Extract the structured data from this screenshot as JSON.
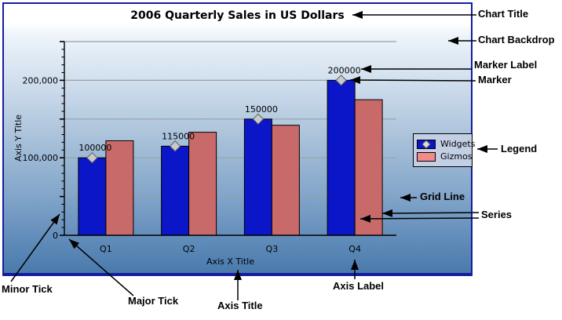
{
  "chart": {
    "title": "2006 Quarterly Sales in US Dollars",
    "axis_x_title": "Axis X Title",
    "axis_y_title": "Axis Y Title"
  },
  "chart_data": {
    "type": "bar",
    "title": "2006 Quarterly Sales in US Dollars",
    "xlabel": "Axis X Title",
    "ylabel": "Axis Y Title",
    "categories": [
      "Q1",
      "Q2",
      "Q3",
      "Q4"
    ],
    "series": [
      {
        "name": "Widgets",
        "color": "#0b16c8",
        "values": [
          100000,
          115000,
          150000,
          200000
        ],
        "marker": "diamond",
        "marker_labels": [
          "100000",
          "115000",
          "150000",
          "200000"
        ]
      },
      {
        "name": "Gizmos",
        "color": "#c96a6a",
        "values": [
          122000,
          133000,
          142000,
          175000
        ]
      }
    ],
    "ylim": [
      0,
      250000
    ],
    "y_major_step": 50000,
    "y_minor_step": 10000,
    "y_labeled_ticks": [
      0,
      100000,
      200000
    ],
    "y_tick_labels": [
      "0",
      "100,000",
      "200,000"
    ],
    "grid": true,
    "legend_position": "right-inside"
  },
  "legend": {
    "items": [
      {
        "label": "Widgets",
        "swatch_color": "#0b16c8",
        "has_marker": true
      },
      {
        "label": "Gizmos",
        "swatch_color": "#f28a8a",
        "has_marker": false
      }
    ]
  },
  "annotations": {
    "chart_title": {
      "label": "Chart Title"
    },
    "chart_backdrop": {
      "label": "Chart Backdrop"
    },
    "marker_label": {
      "label": "Marker Label"
    },
    "marker": {
      "label": "Marker"
    },
    "legend": {
      "label": "Legend"
    },
    "grid_line": {
      "label": "Grid Line"
    },
    "series": {
      "label": "Series"
    },
    "axis_label": {
      "label": "Axis Label"
    },
    "axis_title": {
      "label": "Axis Title"
    },
    "major_tick": {
      "label": "Major Tick"
    },
    "minor_tick": {
      "label": "Minor Tick"
    }
  },
  "colors": {
    "frame_border": "#151d9e",
    "backdrop_top": "#ffffff",
    "backdrop_bottom": "#4a7aac",
    "grid_line": "#9aa0a6",
    "marker_fill": "#c9c9c9",
    "marker_stroke": "#5e5e5e",
    "legend_background": "#c3cfe5",
    "annotation_text": "#000000"
  }
}
